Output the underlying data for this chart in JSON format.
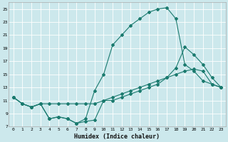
{
  "xlabel": "Humidex (Indice chaleur)",
  "bg_color": "#cce8ec",
  "grid_color": "#b0d4d8",
  "line_color": "#1a7a6e",
  "xlim": [
    -0.5,
    23.5
  ],
  "ylim": [
    7,
    26
  ],
  "xticks": [
    0,
    1,
    2,
    3,
    4,
    5,
    6,
    7,
    8,
    9,
    10,
    11,
    12,
    13,
    14,
    15,
    16,
    17,
    18,
    19,
    20,
    21,
    22,
    23
  ],
  "yticks": [
    7,
    9,
    11,
    13,
    15,
    17,
    19,
    21,
    23,
    25
  ],
  "line1_x": [
    0,
    1,
    2,
    3,
    4,
    5,
    6,
    7,
    8,
    9,
    10,
    11,
    12,
    13,
    14,
    15,
    16,
    17,
    18,
    19,
    20,
    21,
    22,
    23
  ],
  "line1_y": [
    11.5,
    10.5,
    10.0,
    10.5,
    8.2,
    8.5,
    8.2,
    7.5,
    8.2,
    12.5,
    15.0,
    19.5,
    21.0,
    22.5,
    23.5,
    24.5,
    25.0,
    25.2,
    23.5,
    16.5,
    15.5,
    14.0,
    13.5,
    13.0
  ],
  "line2_x": [
    0,
    1,
    2,
    3,
    4,
    5,
    6,
    7,
    8,
    9,
    10,
    11,
    12,
    13,
    14,
    15,
    16,
    17,
    18,
    19,
    20,
    21,
    22,
    23
  ],
  "line2_y": [
    11.5,
    10.5,
    10.0,
    10.5,
    8.2,
    8.5,
    8.2,
    7.5,
    7.8,
    8.0,
    11.0,
    11.0,
    11.5,
    12.0,
    12.5,
    13.0,
    13.5,
    14.5,
    16.0,
    19.2,
    18.0,
    16.5,
    14.5,
    13.0
  ],
  "line3_x": [
    0,
    1,
    2,
    3,
    4,
    5,
    6,
    7,
    8,
    9,
    10,
    11,
    12,
    13,
    14,
    15,
    16,
    17,
    18,
    19,
    20,
    21,
    22,
    23
  ],
  "line3_y": [
    11.5,
    10.5,
    10.0,
    10.5,
    10.5,
    10.5,
    10.5,
    10.5,
    10.5,
    10.5,
    11.0,
    11.5,
    12.0,
    12.5,
    13.0,
    13.5,
    14.0,
    14.5,
    15.0,
    15.5,
    15.8,
    15.5,
    13.5,
    13.0
  ]
}
